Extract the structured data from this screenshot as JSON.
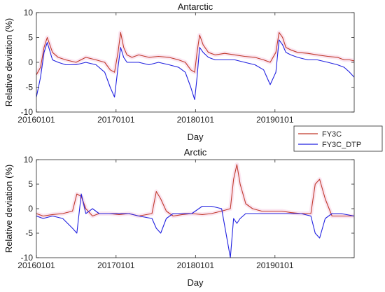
{
  "chart_data": [
    {
      "type": "line",
      "title": "Antarctic",
      "xlabel": "Day",
      "ylabel": "Relative deviation (%)",
      "ylim": [
        -10,
        10
      ],
      "yticks": [
        "-10",
        "-5",
        "0",
        "5",
        "10"
      ],
      "xlim": [
        "2016-01-01",
        "2019-12-31"
      ],
      "xticks": [
        "20160101",
        "20170101",
        "20180101",
        "20190101"
      ],
      "grid": false,
      "series": [
        {
          "name": "FY3C",
          "color": "#c0392b",
          "x": [
            "2016-01-01",
            "2016-01-20",
            "2016-02-05",
            "2016-02-20",
            "2016-03-15",
            "2016-04-10",
            "2016-05-15",
            "2016-07-01",
            "2016-08-15",
            "2016-10-01",
            "2016-11-10",
            "2016-12-05",
            "2016-12-25",
            "2017-01-10",
            "2017-01-22",
            "2017-02-05",
            "2017-02-20",
            "2017-03-15",
            "2017-04-15",
            "2017-06-01",
            "2017-07-15",
            "2017-09-01",
            "2017-10-15",
            "2017-11-15",
            "2017-12-10",
            "2017-12-28",
            "2018-01-08",
            "2018-01-20",
            "2018-02-05",
            "2018-03-01",
            "2018-04-01",
            "2018-05-15",
            "2018-07-01",
            "2018-08-15",
            "2018-10-01",
            "2018-11-10",
            "2018-12-10",
            "2019-01-05",
            "2019-01-20",
            "2019-02-05",
            "2019-02-20",
            "2019-03-15",
            "2019-04-15",
            "2019-06-01",
            "2019-07-15",
            "2019-09-01",
            "2019-10-15",
            "2019-11-15",
            "2019-12-10",
            "2019-12-31"
          ],
          "y": [
            -2.5,
            -1,
            3,
            5,
            2,
            1,
            0.5,
            0,
            1,
            0.5,
            0,
            -1.5,
            -2,
            2,
            6,
            3,
            1.5,
            1,
            1.5,
            1,
            1.2,
            1,
            0.5,
            0,
            -1.5,
            -2,
            2,
            5.5,
            3.5,
            2,
            1.5,
            1.8,
            1.5,
            1.2,
            1,
            0.5,
            0,
            2,
            6,
            5,
            3,
            2.5,
            2,
            1.8,
            1.5,
            1.2,
            1,
            0.5,
            0.5,
            0.3
          ]
        },
        {
          "name": "FY3C_DTP",
          "color": "#2020e0",
          "x": [
            "2016-01-01",
            "2016-01-20",
            "2016-02-05",
            "2016-02-20",
            "2016-03-15",
            "2016-04-10",
            "2016-05-15",
            "2016-07-01",
            "2016-08-15",
            "2016-10-01",
            "2016-11-10",
            "2016-12-05",
            "2016-12-25",
            "2017-01-10",
            "2017-01-22",
            "2017-02-05",
            "2017-02-20",
            "2017-03-15",
            "2017-04-15",
            "2017-06-01",
            "2017-07-15",
            "2017-09-01",
            "2017-10-15",
            "2017-11-15",
            "2017-12-10",
            "2017-12-28",
            "2018-01-08",
            "2018-01-20",
            "2018-02-05",
            "2018-03-01",
            "2018-04-01",
            "2018-05-15",
            "2018-07-01",
            "2018-08-15",
            "2018-10-01",
            "2018-11-10",
            "2018-12-10",
            "2019-01-05",
            "2019-01-20",
            "2019-02-05",
            "2019-02-20",
            "2019-03-15",
            "2019-04-15",
            "2019-06-01",
            "2019-07-15",
            "2019-09-01",
            "2019-10-15",
            "2019-11-15",
            "2019-12-10",
            "2019-12-31"
          ],
          "y": [
            -7,
            -3,
            2,
            4,
            0.5,
            0,
            -0.5,
            -0.5,
            0,
            -0.5,
            -2,
            -5,
            -7,
            -1,
            3,
            1,
            0,
            0,
            0,
            -0.5,
            0,
            -0.5,
            -1,
            -2,
            -5,
            -7.5,
            -3,
            3,
            2,
            1,
            0.5,
            0.5,
            0.5,
            0,
            -0.5,
            -1.5,
            -4.5,
            -2,
            4.5,
            3.5,
            2,
            1.5,
            1,
            0.5,
            0.5,
            0,
            -0.5,
            -1,
            -2,
            -3
          ]
        }
      ]
    },
    {
      "type": "line",
      "title": "Arctic",
      "xlabel": "Day",
      "ylabel": "Relative deviation (%)",
      "ylim": [
        -10,
        10
      ],
      "yticks": [
        "-10",
        "-5",
        "0",
        "5",
        "10"
      ],
      "xlim": [
        "2016-01-01",
        "2019-12-31"
      ],
      "xticks": [
        "20160101",
        "20170101",
        "20180101",
        "20190101"
      ],
      "grid": false,
      "legend_position": "top-right",
      "series": [
        {
          "name": "FY3C",
          "color": "#c0392b",
          "x": [
            "2016-01-01",
            "2016-02-01",
            "2016-03-15",
            "2016-05-01",
            "2016-06-15",
            "2016-07-05",
            "2016-07-25",
            "2016-08-15",
            "2016-09-15",
            "2016-10-15",
            "2016-12-01",
            "2017-01-15",
            "2017-03-01",
            "2017-04-15",
            "2017-06-15",
            "2017-07-05",
            "2017-07-25",
            "2017-08-20",
            "2017-09-20",
            "2017-11-01",
            "2017-12-15",
            "2018-02-01",
            "2018-03-15",
            "2018-05-01",
            "2018-06-10",
            "2018-06-25",
            "2018-07-10",
            "2018-07-25",
            "2018-08-20",
            "2018-09-20",
            "2018-11-01",
            "2018-12-15",
            "2019-02-01",
            "2019-03-15",
            "2019-05-01",
            "2019-06-15",
            "2019-07-05",
            "2019-07-25",
            "2019-08-20",
            "2019-09-20",
            "2019-11-01",
            "2019-12-31"
          ],
          "y": [
            -1,
            -1.5,
            -1.2,
            -1,
            -0.5,
            3,
            2.5,
            0,
            -1.5,
            -1,
            -1,
            -1.2,
            -1,
            -1.5,
            -1,
            3.5,
            2,
            -0.5,
            -1.5,
            -1.2,
            -1,
            -1.2,
            -1,
            -0.5,
            0,
            6,
            9,
            5,
            1,
            0,
            -0.5,
            -0.5,
            -0.5,
            -0.8,
            -1,
            -1,
            5,
            6,
            2,
            -1.5,
            -1.5,
            -1.5
          ]
        },
        {
          "name": "FY3C_DTP",
          "color": "#2020e0",
          "x": [
            "2016-01-01",
            "2016-02-01",
            "2016-03-15",
            "2016-05-01",
            "2016-06-15",
            "2016-07-05",
            "2016-07-25",
            "2016-08-15",
            "2016-09-15",
            "2016-10-15",
            "2016-12-01",
            "2017-01-15",
            "2017-03-01",
            "2017-04-15",
            "2017-06-15",
            "2017-07-05",
            "2017-07-25",
            "2017-08-20",
            "2017-09-20",
            "2017-11-01",
            "2017-12-15",
            "2018-02-01",
            "2018-03-15",
            "2018-05-01",
            "2018-06-10",
            "2018-06-25",
            "2018-07-10",
            "2018-07-25",
            "2018-08-20",
            "2018-09-20",
            "2018-11-01",
            "2018-12-15",
            "2019-02-01",
            "2019-03-15",
            "2019-05-01",
            "2019-06-15",
            "2019-07-05",
            "2019-07-25",
            "2019-08-20",
            "2019-09-20",
            "2019-11-01",
            "2019-12-31"
          ],
          "y": [
            -1.5,
            -2,
            -1.5,
            -2,
            -4,
            -5,
            3,
            -1,
            0,
            -1,
            -1,
            -1,
            -1,
            -1.5,
            -2,
            -4,
            -5,
            -2,
            -1,
            -1,
            -1,
            0.5,
            0.5,
            0,
            -10,
            -2,
            -3,
            -2,
            -1,
            -1,
            -1,
            -1,
            -1,
            -1,
            -1,
            -1.5,
            -5,
            -6,
            -2,
            -1,
            -1,
            -1.5
          ]
        }
      ]
    }
  ]
}
